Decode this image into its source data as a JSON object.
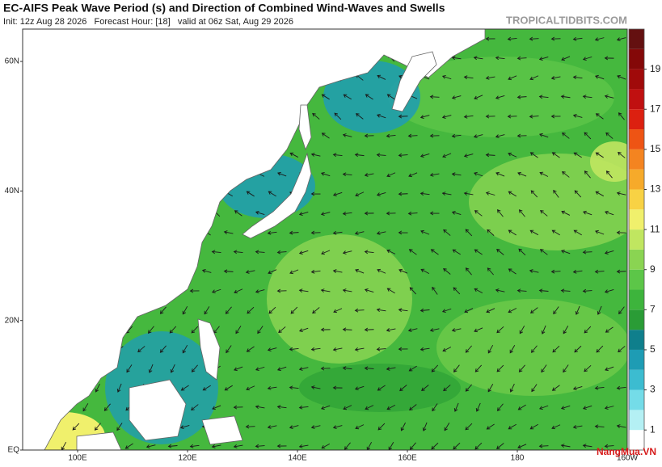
{
  "header": {
    "title": "EC-AIFS Peak Wave Period (s) and Direction of Combined Wind-Waves and Swells",
    "subtitle": "Init: 12z Aug 28 2026   Forecast Hour: [18]   valid at 06z Sat, Aug 29 2026",
    "source": "TROPICALTIDBITS.COM"
  },
  "map": {
    "latlim": [
      0,
      65
    ],
    "lonlim": [
      90,
      200
    ],
    "lat_ticks": [
      {
        "value": 60,
        "label": "60N"
      },
      {
        "value": 40,
        "label": "40N"
      },
      {
        "value": 20,
        "label": "20N"
      },
      {
        "value": 0,
        "label": "EQ"
      }
    ],
    "lon_ticks": [
      {
        "value": 100,
        "label": "100E"
      },
      {
        "value": 120,
        "label": "120E"
      },
      {
        "value": 140,
        "label": "140E"
      },
      {
        "value": 160,
        "label": "160E"
      },
      180,
      {
        "value": 200,
        "label": "160W"
      }
    ]
  },
  "colorbar": {
    "range": [
      0,
      21
    ],
    "ticks": [
      1,
      3,
      5,
      7,
      9,
      11,
      13,
      15,
      17,
      19
    ],
    "colors": [
      "#ffffff",
      "#b4f0f4",
      "#74dce8",
      "#3cbcd0",
      "#1e9cb4",
      "#0f7f8c",
      "#2a9c36",
      "#3db43c",
      "#5cc648",
      "#8ad452",
      "#c0e660",
      "#f0f06c",
      "#f8d244",
      "#f6aa2a",
      "#f48420",
      "#ee5414",
      "#dc2010",
      "#c01010",
      "#a00a0a",
      "#840808",
      "#641010"
    ]
  },
  "watermark": "NangMua.VN"
}
